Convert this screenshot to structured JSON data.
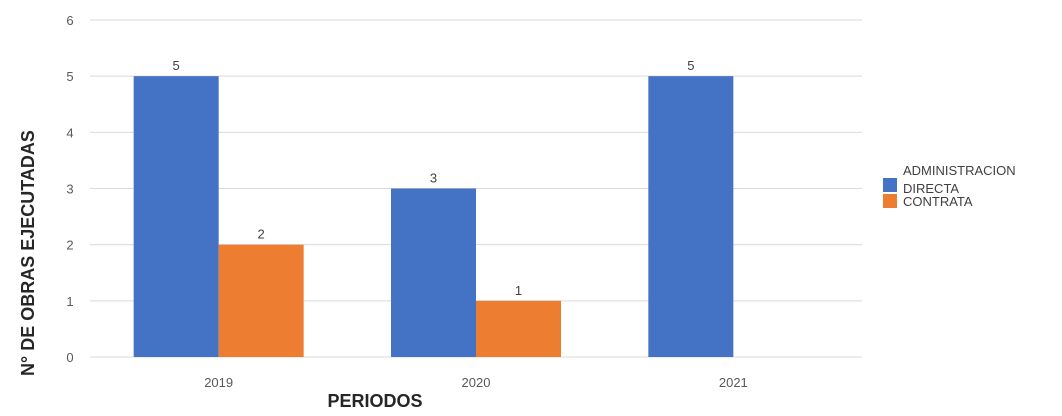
{
  "chart_data": {
    "type": "bar",
    "title": "",
    "xlabel": "PERIODOS",
    "ylabel": "N° DE OBRAS EJECUTADAS",
    "categories": [
      "2019",
      "2020",
      "2021"
    ],
    "ylim": [
      0,
      6
    ],
    "yticks": [
      0,
      1,
      2,
      3,
      4,
      5,
      6
    ],
    "grid": true,
    "legend_position": "right",
    "series": [
      {
        "name": "ADMINISTRACION DIRECTA",
        "color": "#4472C4",
        "values": [
          5,
          3,
          5
        ]
      },
      {
        "name": "CONTRATA",
        "color": "#ED7D31",
        "values": [
          2,
          1,
          null
        ]
      }
    ]
  }
}
